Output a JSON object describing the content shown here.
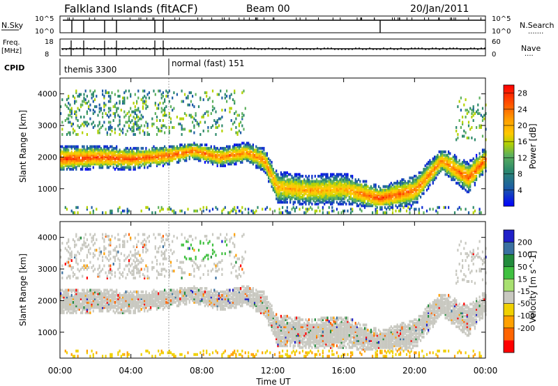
{
  "header": {
    "title": "Falkland Islands (fitACF)",
    "beam": "Beam 00",
    "date": "20/Jan/2011"
  },
  "top_panels": {
    "nsky_label": "N.Sky",
    "nsearch_label": "N.Search",
    "nsearch_dots": ".......",
    "freq_label_1": "Freq.",
    "freq_label_2": "[MHz]",
    "nave_label": "Nave",
    "nave_dots": "....",
    "cpid_label": "CPID",
    "noise_left_ticks": [
      "10^5",
      "10^0"
    ],
    "noise_right_ticks": [
      "10^5",
      "10^0"
    ],
    "freq_left_ticks": [
      "18",
      "8"
    ],
    "nave_right_ticks": [
      "60",
      "0"
    ],
    "cpid_segments": [
      "themis 3300",
      "normal (fast) 151"
    ]
  },
  "xaxis": {
    "label": "Time UT",
    "ticks": [
      "00:00",
      "04:00",
      "08:00",
      "12:00",
      "16:00",
      "20:00",
      "00:00"
    ]
  },
  "colorbars": {
    "power": {
      "label": "Power [dB]",
      "ticks": [
        "28",
        "24",
        "20",
        "16",
        "12",
        "8",
        "4"
      ],
      "colors": [
        "#ff0000",
        "#ff3a00",
        "#ff6e00",
        "#ff9a00",
        "#ffc800",
        "#e8d000",
        "#b4d200",
        "#5cb05c",
        "#2d8a6a",
        "#1c5ca4",
        "#0a2ad0",
        "#0000ff"
      ]
    },
    "velocity": {
      "label": "Velocity [m s^-1]",
      "ticks": [
        "200",
        "100",
        "50",
        "15",
        "-15",
        "-50",
        "-100",
        "-200"
      ],
      "colors": [
        "#2020c8",
        "#3a70a0",
        "#228b3c",
        "#40c040",
        "#a8e070",
        "#c8c8c0",
        "#f0d000",
        "#ffa000",
        "#ff6400",
        "#ff0000"
      ]
    }
  },
  "chart_data": [
    {
      "type": "heatmap",
      "name": "Power",
      "ylabel": "Slant Range [km]",
      "xlabel": "Time UT",
      "xlim": [
        "00:00",
        "24:00"
      ],
      "ylim": [
        180,
        4500
      ],
      "yticks": [
        "1000",
        "2000",
        "3000",
        "4000"
      ],
      "colorbar_range_dB": [
        0,
        30
      ],
      "echo_bands": [
        {
          "t": 0.0,
          "center_km": 1950,
          "half_width_km": 320,
          "power_dB": 28
        },
        {
          "t": 2.0,
          "center_km": 2000,
          "half_width_km": 300,
          "power_dB": 28
        },
        {
          "t": 4.0,
          "center_km": 1950,
          "half_width_km": 280,
          "power_dB": 27
        },
        {
          "t": 6.0,
          "center_km": 2050,
          "half_width_km": 250,
          "power_dB": 27
        },
        {
          "t": 7.5,
          "center_km": 2200,
          "half_width_km": 220,
          "power_dB": 26
        },
        {
          "t": 9.0,
          "center_km": 2000,
          "half_width_km": 240,
          "power_dB": 25
        },
        {
          "t": 10.5,
          "center_km": 2150,
          "half_width_km": 260,
          "power_dB": 24
        },
        {
          "t": 11.5,
          "center_km": 1900,
          "half_width_km": 300,
          "power_dB": 24
        },
        {
          "t": 12.2,
          "center_km": 1050,
          "half_width_km": 400,
          "power_dB": 22
        },
        {
          "t": 14.0,
          "center_km": 950,
          "half_width_km": 380,
          "power_dB": 22
        },
        {
          "t": 16.0,
          "center_km": 1000,
          "half_width_km": 400,
          "power_dB": 21
        },
        {
          "t": 18.0,
          "center_km": 700,
          "half_width_km": 300,
          "power_dB": 28
        },
        {
          "t": 20.0,
          "center_km": 950,
          "half_width_km": 380,
          "power_dB": 25
        },
        {
          "t": 21.5,
          "center_km": 1900,
          "half_width_km": 300,
          "power_dB": 24
        },
        {
          "t": 23.0,
          "center_km": 1350,
          "half_width_km": 400,
          "power_dB": 26
        },
        {
          "t": 24.0,
          "center_km": 1950,
          "half_width_km": 300,
          "power_dB": 27
        }
      ]
    },
    {
      "type": "heatmap",
      "name": "Velocity",
      "ylabel": "Slant Range [km]",
      "xlabel": "Time UT",
      "xlim": [
        "00:00",
        "24:00"
      ],
      "ylim": [
        180,
        4500
      ],
      "yticks": [
        "1000",
        "2000",
        "3000",
        "4000"
      ],
      "colorbar_range_ms": [
        -200,
        200
      ],
      "dominant_velocity_ms": "-15 to 15 (ground scatter)"
    }
  ]
}
